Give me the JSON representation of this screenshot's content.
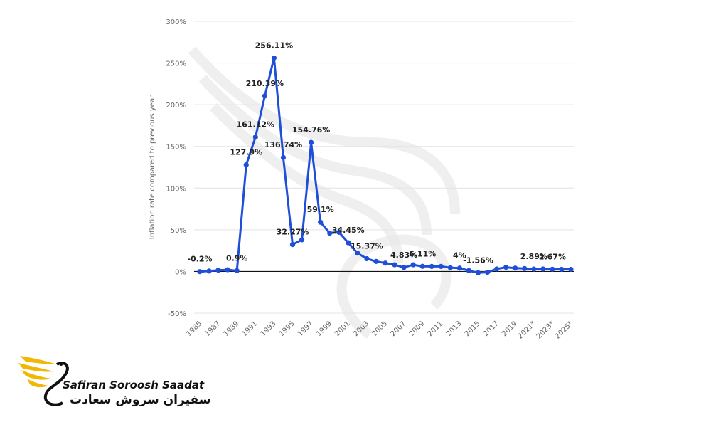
{
  "chart_data": {
    "type": "line",
    "ylabel": "Inflation rate compared to previous year",
    "xlabel": "",
    "ylim": [
      -50,
      300
    ],
    "yticks": [
      "300%",
      "250%",
      "200%",
      "150%",
      "100%",
      "50%",
      "0%",
      "-50%"
    ],
    "ytick_values": [
      300,
      250,
      200,
      150,
      100,
      50,
      0,
      -50
    ],
    "xtick_labels": [
      "1985",
      "1987",
      "1989",
      "1991",
      "1993",
      "1995",
      "1997",
      "1999",
      "2001",
      "2003",
      "2005",
      "2007",
      "2009",
      "2011",
      "2013",
      "2015",
      "2017",
      "2019",
      "2021*",
      "2023*",
      "2025*"
    ],
    "grid": true,
    "line_color": "#1f4fd8",
    "x": [
      1985,
      1986,
      1987,
      1988,
      1989,
      1990,
      1991,
      1992,
      1993,
      1994,
      1995,
      1996,
      1997,
      1998,
      1999,
      2000,
      2001,
      2002,
      2003,
      2004,
      2005,
      2006,
      2007,
      2008,
      2009,
      2010,
      2011,
      2012,
      2013,
      2014,
      2015,
      2016,
      2017,
      2018,
      2019,
      2020,
      2021,
      2022,
      2023,
      2024,
      2025
    ],
    "values": [
      -0.2,
      0.5,
      1.5,
      2.0,
      0.9,
      127.9,
      161.12,
      210.39,
      256.11,
      136.74,
      32.27,
      38.0,
      154.76,
      59.1,
      46.0,
      47.0,
      34.45,
      22.0,
      15.37,
      12.0,
      10.0,
      8.0,
      4.83,
      8.0,
      6.11,
      6.0,
      6.0,
      4.5,
      4.0,
      1.0,
      -1.56,
      -1.0,
      3.0,
      5.0,
      4.0,
      3.5,
      2.89,
      3.0,
      2.67,
      2.5,
      2.5
    ],
    "data_labels": [
      {
        "index": 0,
        "text": "-0.2%"
      },
      {
        "index": 4,
        "text": "0.9%"
      },
      {
        "index": 5,
        "text": "127.9%"
      },
      {
        "index": 6,
        "text": "161.12%"
      },
      {
        "index": 7,
        "text": "210.39%"
      },
      {
        "index": 8,
        "text": "256.11%"
      },
      {
        "index": 9,
        "text": "136.74%"
      },
      {
        "index": 10,
        "text": "32.27%"
      },
      {
        "index": 12,
        "text": "154.76%"
      },
      {
        "index": 13,
        "text": "59.1%"
      },
      {
        "index": 16,
        "text": "34.45%"
      },
      {
        "index": 18,
        "text": "15.37%"
      },
      {
        "index": 22,
        "text": "4.83%"
      },
      {
        "index": 24,
        "text": "6.11%"
      },
      {
        "index": 28,
        "text": "4%"
      },
      {
        "index": 30,
        "text": "-1.56%"
      },
      {
        "index": 36,
        "text": "2.89%"
      },
      {
        "index": 38,
        "text": "2.67%"
      }
    ]
  },
  "logo": {
    "name_en": "Safiran Soroosh Saadat",
    "name_fa": "سفیران سروش سعادت",
    "accent_color": "#f2b705"
  }
}
